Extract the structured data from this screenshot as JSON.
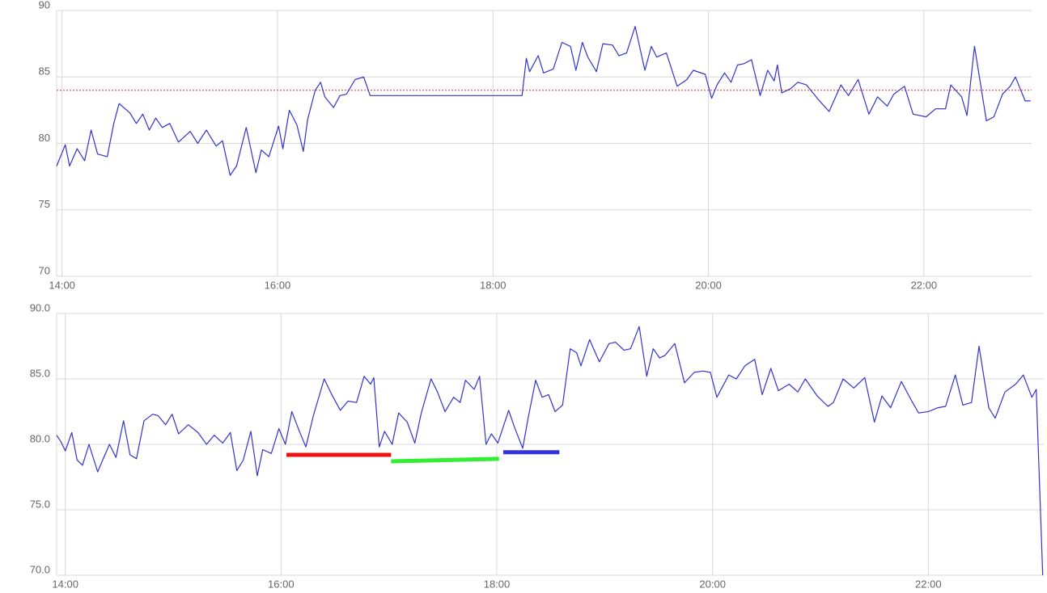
{
  "chart_data": [
    {
      "type": "line",
      "xlim": [
        13.95,
        23.0
      ],
      "ylim": [
        70,
        90
      ],
      "xticks": [
        {
          "value": 14,
          "label": "14:00"
        },
        {
          "value": 16,
          "label": "16:00"
        },
        {
          "value": 18,
          "label": "18:00"
        },
        {
          "value": 20,
          "label": "20:00"
        },
        {
          "value": 22,
          "label": "22:00"
        }
      ],
      "yticks": [
        70,
        75,
        80,
        85,
        90
      ],
      "grid": true,
      "reference_line": {
        "value": 84,
        "color": "#e53935",
        "style": "dotted"
      },
      "series": [
        {
          "color": "#3333cc",
          "x": [
            13.95,
            14.03,
            14.07,
            14.14,
            14.21,
            14.27,
            14.33,
            14.42,
            14.48,
            14.53,
            14.63,
            14.69,
            14.75,
            14.81,
            14.87,
            14.93,
            15.0,
            15.08,
            15.19,
            15.26,
            15.34,
            15.43,
            15.49,
            15.56,
            15.62,
            15.71,
            15.8,
            15.85,
            15.92,
            16.01,
            16.05,
            16.11,
            16.18,
            16.24,
            16.28,
            16.35,
            16.4,
            16.44,
            16.52,
            16.58,
            16.64,
            16.72,
            16.8,
            16.86,
            18.27,
            18.31,
            18.34,
            18.42,
            18.47,
            18.56,
            18.64,
            18.72,
            18.77,
            18.83,
            18.88,
            18.96,
            19.02,
            19.11,
            19.17,
            19.24,
            19.32,
            19.41,
            19.47,
            19.52,
            19.61,
            19.71,
            19.8,
            19.86,
            19.97,
            20.03,
            20.08,
            20.15,
            20.21,
            20.27,
            20.33,
            20.4,
            20.48,
            20.55,
            20.61,
            20.64,
            20.68,
            20.76,
            20.83,
            20.91,
            21.02,
            21.12,
            21.23,
            21.3,
            21.39,
            21.49,
            21.57,
            21.66,
            21.72,
            21.82,
            21.9,
            22.02,
            22.11,
            22.2,
            22.25,
            22.35,
            22.4,
            22.47,
            22.58,
            22.65,
            22.73,
            22.8,
            22.85,
            22.94,
            22.99
          ],
          "values": [
            78.3,
            79.9,
            78.3,
            79.6,
            78.7,
            81.0,
            79.2,
            79.0,
            81.5,
            83.0,
            82.3,
            81.5,
            82.2,
            81.0,
            81.9,
            81.2,
            81.5,
            80.1,
            80.9,
            80.0,
            81.0,
            79.8,
            80.2,
            77.6,
            78.3,
            81.2,
            77.8,
            79.5,
            79.0,
            81.3,
            79.6,
            82.5,
            81.4,
            79.4,
            81.8,
            84.0,
            84.6,
            83.5,
            82.7,
            83.6,
            83.7,
            84.8,
            85.0,
            83.6,
            83.6,
            86.4,
            85.4,
            86.6,
            85.3,
            85.6,
            87.6,
            87.3,
            85.5,
            87.6,
            86.5,
            85.4,
            87.5,
            87.4,
            86.6,
            86.8,
            88.8,
            85.5,
            87.3,
            86.5,
            86.8,
            84.3,
            84.8,
            85.5,
            85.2,
            83.4,
            84.4,
            85.3,
            84.6,
            85.9,
            86.0,
            86.3,
            83.6,
            85.5,
            84.7,
            85.9,
            83.8,
            84.1,
            84.6,
            84.4,
            83.3,
            82.4,
            84.4,
            83.6,
            84.8,
            82.2,
            83.5,
            82.8,
            83.7,
            84.3,
            82.2,
            82.0,
            82.6,
            82.6,
            84.4,
            83.5,
            82.1,
            87.3,
            81.7,
            82.0,
            83.7,
            84.3,
            85.0,
            83.2,
            83.2
          ]
        }
      ]
    },
    {
      "type": "line",
      "xlim": [
        13.92,
        23.07
      ],
      "ylim": [
        70,
        90
      ],
      "xticks": [
        {
          "value": 14,
          "label": "14:00"
        },
        {
          "value": 16,
          "label": "16:00"
        },
        {
          "value": 18,
          "label": "18:00"
        },
        {
          "value": 20,
          "label": "20:00"
        },
        {
          "value": 22,
          "label": "22:00"
        }
      ],
      "yticks": [
        {
          "value": 70,
          "label": "70.0"
        },
        {
          "value": 75,
          "label": "75.0"
        },
        {
          "value": 80,
          "label": "80.0"
        },
        {
          "value": 85,
          "label": "85.0"
        },
        {
          "value": 90,
          "label": "90.0"
        }
      ],
      "grid": true,
      "segments": [
        {
          "color": "#ee1111",
          "x": [
            16.05,
            17.02
          ],
          "y": [
            79.2,
            79.2
          ]
        },
        {
          "color": "#33ee33",
          "x": [
            17.02,
            18.02
          ],
          "y": [
            78.7,
            78.9
          ]
        },
        {
          "color": "#3333dd",
          "x": [
            18.06,
            18.58
          ],
          "y": [
            79.4,
            79.4
          ]
        }
      ],
      "series": [
        {
          "color": "#3333cc",
          "x": [
            13.92,
            13.96,
            14.0,
            14.06,
            14.11,
            14.16,
            14.22,
            14.3,
            14.41,
            14.47,
            14.54,
            14.6,
            14.66,
            14.73,
            14.81,
            14.86,
            14.93,
            14.99,
            15.05,
            15.14,
            15.23,
            15.31,
            15.38,
            15.46,
            15.53,
            15.59,
            15.65,
            15.72,
            15.78,
            15.83,
            15.91,
            15.98,
            16.04,
            16.1,
            16.17,
            16.23,
            16.3,
            16.4,
            16.47,
            16.55,
            16.62,
            16.7,
            16.77,
            16.83,
            16.86,
            16.91,
            16.96,
            17.03,
            17.09,
            17.17,
            17.24,
            17.3,
            17.39,
            17.45,
            17.52,
            17.6,
            17.66,
            17.71,
            17.79,
            17.84,
            17.9,
            17.95,
            18.01,
            18.03,
            18.11,
            18.16,
            18.24,
            18.29,
            18.36,
            18.42,
            18.48,
            18.54,
            18.61,
            18.68,
            18.74,
            18.78,
            18.86,
            18.95,
            19.04,
            19.1,
            19.18,
            19.24,
            19.32,
            19.39,
            19.45,
            19.51,
            19.56,
            19.65,
            19.74,
            19.83,
            19.91,
            19.98,
            20.04,
            20.15,
            20.22,
            20.3,
            20.39,
            20.46,
            20.54,
            20.61,
            20.71,
            20.79,
            20.86,
            20.97,
            21.07,
            21.12,
            21.21,
            21.31,
            21.41,
            21.5,
            21.57,
            21.65,
            21.75,
            21.84,
            21.91,
            22.0,
            22.09,
            22.16,
            22.25,
            22.32,
            22.4,
            22.47,
            22.56,
            22.62,
            22.71,
            22.81,
            22.88,
            22.96,
            23.0,
            23.06
          ],
          "values": [
            80.7,
            80.2,
            79.5,
            80.9,
            78.8,
            78.4,
            80.0,
            77.9,
            80.0,
            79.0,
            81.8,
            79.2,
            78.9,
            81.8,
            82.3,
            82.2,
            81.5,
            82.3,
            80.8,
            81.5,
            80.9,
            80.0,
            80.7,
            80.1,
            80.9,
            78.0,
            78.8,
            81.0,
            77.6,
            79.6,
            79.3,
            81.2,
            80.0,
            82.5,
            81.0,
            79.8,
            82.2,
            85.0,
            83.8,
            82.6,
            83.3,
            83.2,
            85.2,
            84.6,
            85.1,
            79.8,
            81.0,
            80.0,
            82.4,
            81.7,
            80.1,
            82.4,
            85.0,
            84.0,
            82.5,
            83.6,
            83.2,
            84.9,
            84.2,
            85.2,
            80.0,
            80.8,
            80.1,
            80.6,
            82.6,
            81.4,
            79.7,
            82.0,
            84.9,
            83.6,
            83.8,
            82.5,
            83.0,
            87.3,
            87.0,
            86.0,
            88.0,
            86.3,
            87.7,
            87.8,
            87.2,
            87.3,
            89.0,
            85.2,
            87.3,
            86.6,
            86.8,
            87.7,
            84.7,
            85.5,
            85.6,
            85.5,
            83.6,
            85.3,
            85.0,
            86.0,
            86.5,
            83.8,
            85.8,
            84.1,
            84.6,
            84.0,
            85.0,
            83.7,
            82.9,
            83.2,
            85.0,
            84.3,
            85.1,
            81.7,
            83.7,
            82.8,
            84.8,
            83.4,
            82.4,
            82.5,
            82.8,
            82.9,
            85.3,
            83.0,
            83.2,
            87.5,
            82.8,
            82.0,
            84.0,
            84.6,
            85.3,
            83.6,
            84.2,
            70.0
          ]
        }
      ]
    }
  ]
}
